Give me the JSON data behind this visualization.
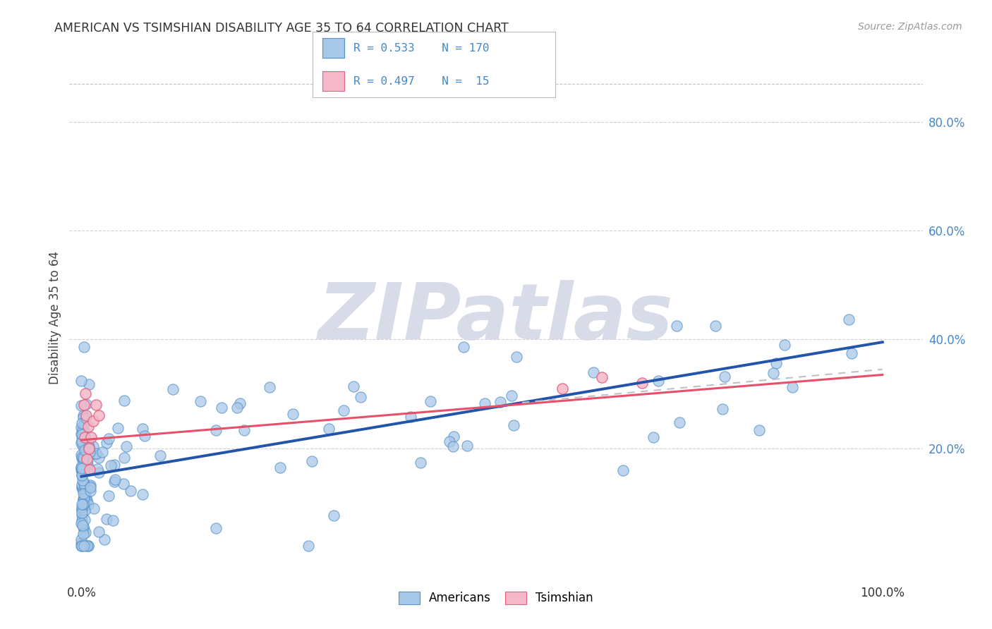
{
  "title": "AMERICAN VS TSIMSHIAN DISABILITY AGE 35 TO 64 CORRELATION CHART",
  "source": "Source: ZipAtlas.com",
  "ylabel": "Disability Age 35 to 64",
  "color_american": "#a8c8e8",
  "color_american_edge": "#5090c8",
  "color_american_line": "#2255aa",
  "color_tsimshian": "#f5b8c8",
  "color_tsimshian_edge": "#e06080",
  "color_tsimshian_line": "#e8506a",
  "color_gray_dashed": "#c0c0c8",
  "color_yticklabel": "#4488cc",
  "color_grid": "#d0d0d8",
  "background_color": "#ffffff",
  "watermark_color": "#d8dce8",
  "legend_r1": "R = 0.533",
  "legend_n1": "N = 170",
  "legend_r2": "R = 0.497",
  "legend_n2": "N =  15",
  "am_line_x0": 0.0,
  "am_line_y0": 0.148,
  "am_line_x1": 1.0,
  "am_line_y1": 0.395,
  "ts_line_x0": 0.0,
  "ts_line_y0": 0.215,
  "ts_line_x1": 1.0,
  "ts_line_y1": 0.335,
  "xlim_min": -0.015,
  "xlim_max": 1.05,
  "ylim_min": -0.04,
  "ylim_max": 0.92,
  "yticks": [
    0.2,
    0.4,
    0.6,
    0.8
  ],
  "xticks": [
    0.0,
    1.0
  ]
}
